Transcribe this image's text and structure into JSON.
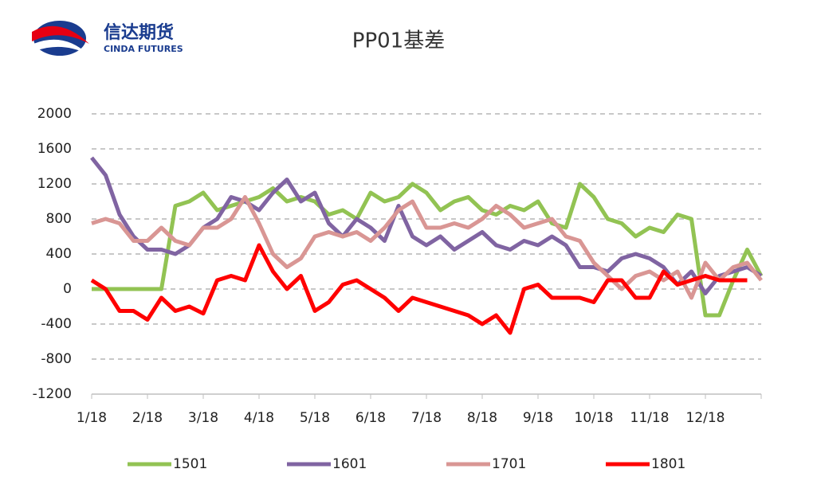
{
  "header": {
    "logo_cn": "信达期货",
    "logo_en": "CINDA FUTURES"
  },
  "chart_data": {
    "type": "line",
    "title": "PP01基差",
    "categories": [
      "1/18",
      null,
      null,
      null,
      "2/18",
      null,
      null,
      null,
      "3/18",
      null,
      null,
      null,
      "4/18",
      null,
      null,
      null,
      "5/18",
      null,
      null,
      null,
      "6/18",
      null,
      null,
      null,
      "7/18",
      null,
      null,
      null,
      "8/18",
      null,
      null,
      null,
      "9/18",
      null,
      null,
      null,
      "10/18",
      null,
      null,
      null,
      "11/18",
      null,
      null,
      null,
      "12/18",
      null,
      null,
      null,
      null
    ],
    "series": [
      {
        "name": "1501",
        "color": "#92c353",
        "values": [
          0,
          0,
          0,
          0,
          0,
          0,
          950,
          1000,
          1100,
          900,
          950,
          1000,
          1050,
          1150,
          1000,
          1050,
          1000,
          850,
          900,
          800,
          1100,
          1000,
          1050,
          1200,
          1100,
          900,
          1000,
          1050,
          900,
          850,
          950,
          900,
          1000,
          750,
          700,
          1200,
          1050,
          800,
          750,
          600,
          700,
          650,
          850,
          800,
          -300,
          -300,
          100,
          450,
          150
        ]
      },
      {
        "name": "1601",
        "color": "#8064a2",
        "values": [
          1500,
          1300,
          850,
          600,
          450,
          450,
          400,
          500,
          700,
          800,
          1050,
          1000,
          900,
          1100,
          1250,
          1000,
          1100,
          750,
          600,
          800,
          700,
          550,
          950,
          600,
          500,
          600,
          450,
          550,
          650,
          500,
          450,
          550,
          500,
          600,
          500,
          250,
          250,
          200,
          350,
          400,
          350,
          250,
          50,
          200,
          -50,
          150,
          200,
          250,
          150
        ]
      },
      {
        "name": "1701",
        "color": "#d99694",
        "values": [
          750,
          800,
          750,
          550,
          550,
          700,
          550,
          500,
          700,
          700,
          800,
          1050,
          750,
          400,
          250,
          350,
          600,
          650,
          600,
          650,
          550,
          700,
          900,
          1000,
          700,
          700,
          750,
          700,
          800,
          950,
          850,
          700,
          750,
          800,
          600,
          550,
          300,
          150,
          0,
          150,
          200,
          100,
          200,
          -100,
          300,
          100,
          250,
          300,
          100
        ]
      },
      {
        "name": "1801",
        "color": "#ff0000",
        "values": [
          100,
          0,
          -250,
          -250,
          -350,
          -100,
          -250,
          -200,
          -280,
          100,
          150,
          100,
          500,
          200,
          0,
          150,
          -250,
          -150,
          50,
          100,
          0,
          -100,
          -250,
          -100,
          -150,
          -200,
          -250,
          -300,
          -400,
          -300,
          -500,
          0,
          50,
          -100,
          -100,
          -100,
          -150,
          100,
          100,
          -100,
          -100,
          200,
          50,
          100,
          150,
          100,
          100,
          100,
          null
        ]
      }
    ],
    "ylim": [
      -1200,
      2000
    ],
    "yticks": [
      -1200,
      -800,
      -400,
      0,
      400,
      800,
      1200,
      1600,
      2000
    ],
    "grid": true,
    "legend": "bottom"
  }
}
